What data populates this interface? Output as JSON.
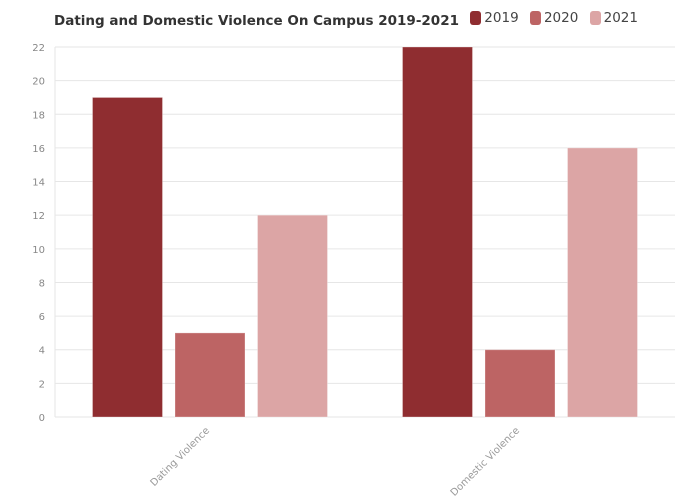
{
  "chart_data": {
    "type": "bar",
    "title": "Dating and Domestic Violence On Campus 2019-2021",
    "categories": [
      "Dating Violence",
      "Domestic Violence"
    ],
    "series": [
      {
        "name": "2019",
        "values": [
          19,
          22
        ],
        "color": "#8f2d30"
      },
      {
        "name": "2020",
        "values": [
          5,
          4
        ],
        "color": "#bd6464"
      },
      {
        "name": "2021",
        "values": [
          12,
          16
        ],
        "color": "#dca5a5"
      }
    ],
    "xlabel": "",
    "ylabel": "",
    "ylim": [
      0,
      22
    ],
    "yticks": [
      0,
      2,
      4,
      6,
      8,
      10,
      12,
      14,
      16,
      18,
      20,
      22
    ],
    "grid": true,
    "legend": "top"
  }
}
